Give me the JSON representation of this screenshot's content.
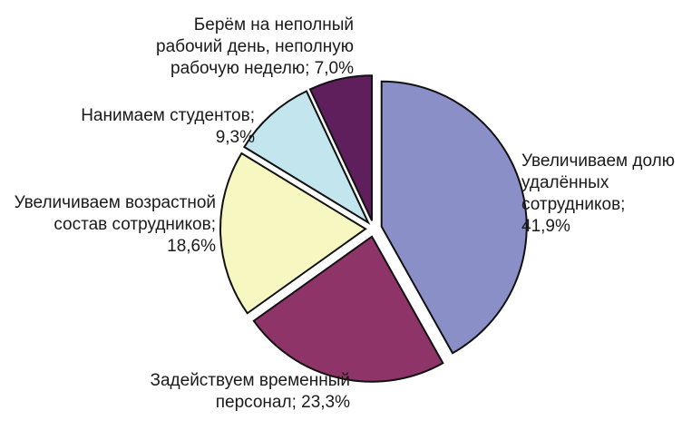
{
  "chart_data": {
    "type": "pie",
    "title": "",
    "slices": [
      {
        "lines": [
          "Увеличиваем долю",
          "удалённых",
          "сотрудников;",
          "41,9%"
        ],
        "value": 41.9,
        "color": "#8A8FC8"
      },
      {
        "lines": [
          "Задействуем временный",
          "персонал; 23,3%"
        ],
        "value": 23.3,
        "color": "#8E3468"
      },
      {
        "lines": [
          "Увеличиваем возрастной",
          "состав сотрудников;",
          "18,6%"
        ],
        "value": 18.6,
        "color": "#F7F7C2"
      },
      {
        "lines": [
          "Нанимаем студентов;",
          "9,3%"
        ],
        "value": 9.3,
        "color": "#C2E5EE"
      },
      {
        "lines": [
          "Берём на неполный",
          "рабочий день, неполную",
          "рабочую неделю; 7,0%"
        ],
        "value": 7.0,
        "color": "#5E1F5C"
      }
    ]
  }
}
